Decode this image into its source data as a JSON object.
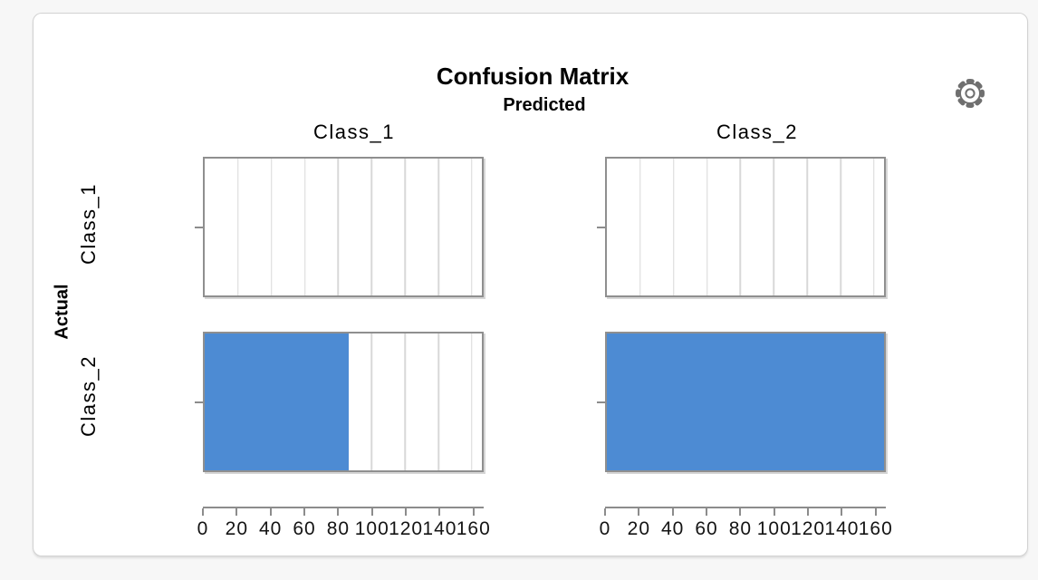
{
  "page_background": "#f7f7f7",
  "card": {
    "background": "#ffffff",
    "border_color": "#d2d2d2"
  },
  "toolbar": {
    "settings_icon": "gear-icon"
  },
  "chart_data": {
    "type": "bar",
    "orientation": "horizontal",
    "title": "Confusion Matrix",
    "column_axis_title": "Predicted",
    "row_axis_title": "Actual",
    "columns": [
      "Class_1",
      "Class_2"
    ],
    "rows": [
      "Class_1",
      "Class_2"
    ],
    "matrix": [
      [
        0,
        0
      ],
      [
        86,
        166
      ]
    ],
    "xlim": [
      0,
      166
    ],
    "xticks": [
      0,
      20,
      40,
      60,
      80,
      100,
      120,
      140,
      160
    ],
    "grid": true,
    "legend": "none",
    "bar_color": "#4d8bd3",
    "gridline_color": "#d8d8d8",
    "axis_color": "#8c8c8c",
    "text_color": "#000000"
  }
}
